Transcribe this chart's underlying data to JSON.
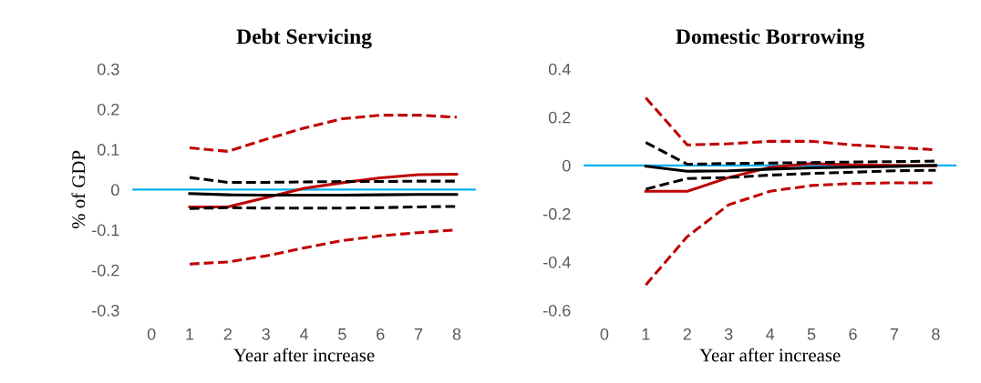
{
  "chart_data": [
    {
      "type": "line",
      "title": "Debt Servicing",
      "ylabel": "% of GDP",
      "xlabel": "Year after increase",
      "x": [
        1,
        2,
        3,
        4,
        5,
        6,
        7,
        8
      ],
      "xlim": [
        -0.5,
        8.5
      ],
      "xticks": [
        0,
        1,
        2,
        3,
        4,
        5,
        6,
        7,
        8
      ],
      "ylim": [
        -0.3,
        0.3
      ],
      "yticks": [
        {
          "value": -0.3,
          "label": "-0.3"
        },
        {
          "value": -0.2,
          "label": "-0.2"
        },
        {
          "value": -0.1,
          "label": "-0.1"
        },
        0,
        0.1,
        0.2,
        0.3
      ],
      "grid": false,
      "ref_lines": [
        {
          "axis": "y",
          "value": 0,
          "color": "#00b0f0"
        }
      ],
      "series": [
        {
          "color": "#c00000",
          "line_style": "dashed",
          "values": [
            0.104,
            0.095,
            0.125,
            0.153,
            0.176,
            0.185,
            0.185,
            0.18
          ]
        },
        {
          "color": "#c00000",
          "line_style": "dashed",
          "values": [
            -0.185,
            -0.18,
            -0.165,
            -0.145,
            -0.127,
            -0.115,
            -0.107,
            -0.1
          ]
        },
        {
          "color": "#c00000",
          "line_style": "solid",
          "values": [
            -0.043,
            -0.043,
            -0.02,
            0.003,
            0.017,
            0.029,
            0.037,
            0.038
          ]
        },
        {
          "color": "#000000",
          "line_style": "dashed",
          "values": [
            0.03,
            0.018,
            0.018,
            0.019,
            0.02,
            0.02,
            0.021,
            0.021
          ]
        },
        {
          "color": "#000000",
          "line_style": "dashed",
          "values": [
            -0.047,
            -0.045,
            -0.046,
            -0.046,
            -0.046,
            -0.045,
            -0.043,
            -0.042
          ]
        },
        {
          "color": "#000000",
          "line_style": "solid",
          "values": [
            -0.01,
            -0.013,
            -0.014,
            -0.014,
            -0.014,
            -0.013,
            -0.012,
            -0.012
          ]
        }
      ]
    },
    {
      "type": "line",
      "title": "Domestic Borrowing",
      "xlabel": "Year after increase",
      "x": [
        1,
        2,
        3,
        4,
        5,
        6,
        7,
        8
      ],
      "xlim": [
        -0.5,
        8.5
      ],
      "xticks": [
        0,
        1,
        2,
        3,
        4,
        5,
        6,
        7,
        8
      ],
      "ylim": [
        -0.6,
        0.4
      ],
      "yticks": [
        {
          "value": -0.6,
          "label": "-0.6"
        },
        {
          "value": -0.4,
          "label": "-0.4"
        },
        {
          "value": -0.2,
          "label": "-0.2"
        },
        0,
        0.2,
        0.4
      ],
      "grid": false,
      "ref_lines": [
        {
          "axis": "y",
          "value": 0,
          "color": "#00b0f0"
        }
      ],
      "series": [
        {
          "color": "#c00000",
          "line_style": "dashed",
          "values": [
            0.28,
            0.085,
            0.09,
            0.1,
            0.1,
            0.085,
            0.075,
            0.065
          ]
        },
        {
          "color": "#c00000",
          "line_style": "dashed",
          "values": [
            -0.495,
            -0.295,
            -0.163,
            -0.107,
            -0.083,
            -0.075,
            -0.072,
            -0.072
          ]
        },
        {
          "color": "#c00000",
          "line_style": "solid",
          "values": [
            -0.107,
            -0.107,
            -0.05,
            -0.008,
            0.008,
            0.002,
            0.0,
            -0.001
          ]
        },
        {
          "color": "#000000",
          "line_style": "dashed",
          "values": [
            0.095,
            0.005,
            0.008,
            0.01,
            0.012,
            0.014,
            0.016,
            0.018
          ]
        },
        {
          "color": "#000000",
          "line_style": "dashed",
          "values": [
            -0.098,
            -0.054,
            -0.05,
            -0.04,
            -0.033,
            -0.028,
            -0.022,
            -0.02
          ]
        },
        {
          "color": "#000000",
          "line_style": "solid",
          "values": [
            -0.003,
            -0.024,
            -0.022,
            -0.015,
            -0.01,
            -0.007,
            -0.004,
            0.0
          ]
        }
      ]
    }
  ]
}
